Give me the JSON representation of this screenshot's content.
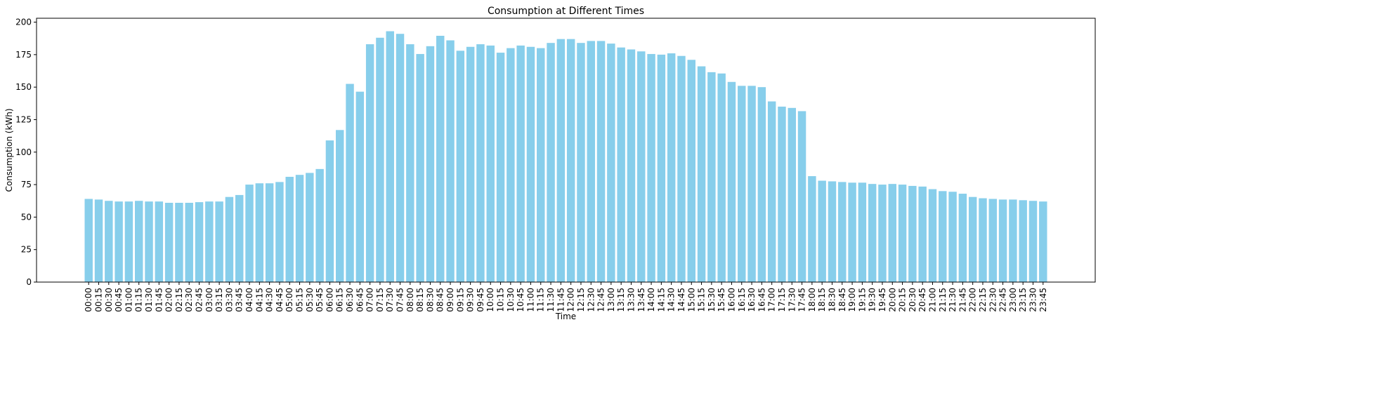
{
  "chart_data": {
    "type": "bar",
    "title": "Consumption at Different Times",
    "xlabel": "Time",
    "ylabel": "Consumption (kWh)",
    "ylim": [
      0,
      203
    ],
    "yticks": [
      0,
      25,
      50,
      75,
      100,
      125,
      150,
      175,
      200
    ],
    "grid": false,
    "bar_color": "#87ceeb",
    "categories": [
      "00:00",
      "00:15",
      "00:30",
      "00:45",
      "01:00",
      "01:15",
      "01:30",
      "01:45",
      "02:00",
      "02:15",
      "02:30",
      "02:45",
      "03:00",
      "03:15",
      "03:30",
      "03:45",
      "04:00",
      "04:15",
      "04:30",
      "04:45",
      "05:00",
      "05:15",
      "05:30",
      "05:45",
      "06:00",
      "06:15",
      "06:30",
      "06:45",
      "07:00",
      "07:15",
      "07:30",
      "07:45",
      "08:00",
      "08:15",
      "08:30",
      "08:45",
      "09:00",
      "09:15",
      "09:30",
      "09:45",
      "10:00",
      "10:15",
      "10:30",
      "10:45",
      "11:00",
      "11:15",
      "11:30",
      "11:45",
      "12:00",
      "12:15",
      "12:30",
      "12:45",
      "13:00",
      "13:15",
      "13:30",
      "13:45",
      "14:00",
      "14:15",
      "14:30",
      "14:45",
      "15:00",
      "15:15",
      "15:30",
      "15:45",
      "16:00",
      "16:15",
      "16:30",
      "16:45",
      "17:00",
      "17:15",
      "17:30",
      "17:45",
      "18:00",
      "18:15",
      "18:30",
      "18:45",
      "19:00",
      "19:15",
      "19:30",
      "19:45",
      "20:00",
      "20:15",
      "20:30",
      "20:45",
      "21:00",
      "21:15",
      "21:30",
      "21:45",
      "22:00",
      "22:15",
      "22:30",
      "22:45",
      "23:00",
      "23:15",
      "23:30",
      "23:45"
    ],
    "values": [
      64,
      63.5,
      62.5,
      62,
      62,
      62.5,
      62,
      62,
      61,
      61,
      61,
      61.5,
      62,
      62,
      65.5,
      67,
      75,
      76,
      76,
      77,
      81,
      82.5,
      84,
      87,
      109,
      117,
      152.5,
      146.5,
      183,
      188,
      193,
      191,
      183,
      175.5,
      181.5,
      189.5,
      186,
      178,
      181,
      183,
      182,
      176.5,
      180,
      182,
      181,
      180,
      184,
      187,
      187,
      184,
      185.5,
      185.5,
      183.5,
      180.5,
      179,
      177.5,
      175.5,
      175,
      176,
      174,
      171,
      166,
      161.5,
      160.5,
      154,
      151,
      151,
      150,
      139,
      135,
      134,
      131.5,
      81.5,
      78,
      77.5,
      77,
      76.5,
      76.5,
      75.5,
      75,
      75.5,
      75,
      74,
      73.5,
      71.5,
      70,
      69.5,
      68,
      65.5,
      64.5,
      64,
      63.5,
      63.5,
      63,
      62.5,
      62
    ]
  }
}
